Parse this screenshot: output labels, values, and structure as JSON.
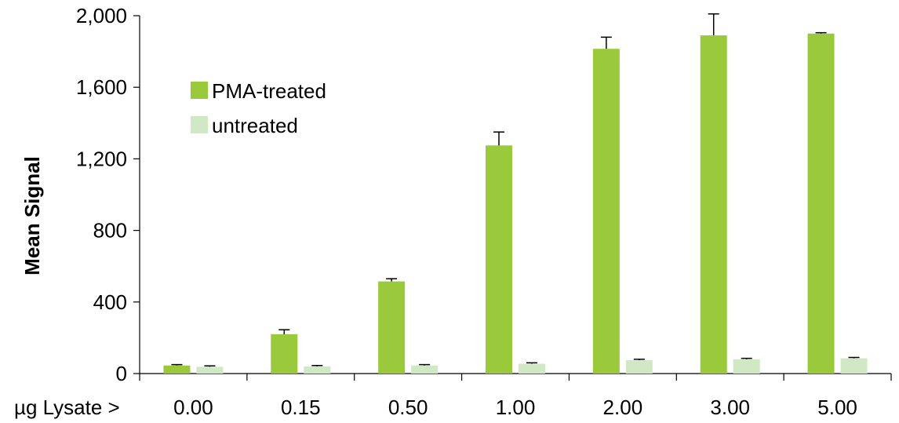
{
  "chart_data": {
    "type": "bar",
    "xlabel": "µg Lysate >",
    "ylabel": "Mean Signal",
    "categories": [
      "0.00",
      "0.15",
      "0.50",
      "1.00",
      "2.00",
      "3.00",
      "5.00"
    ],
    "series": [
      {
        "name": "PMA-treated",
        "color": "#9ACA3C",
        "values": [
          45,
          220,
          515,
          1275,
          1815,
          1890,
          1900
        ],
        "errors": [
          5,
          25,
          15,
          75,
          65,
          120,
          5
        ]
      },
      {
        "name": "untreated",
        "color": "#D1E8C4",
        "values": [
          38,
          40,
          45,
          55,
          75,
          80,
          85
        ],
        "errors": [
          5,
          5,
          5,
          5,
          5,
          5,
          5
        ]
      }
    ],
    "ylim": [
      0,
      2000
    ],
    "yticks": [
      "0",
      "400",
      "800",
      "1,200",
      "1,600",
      "2,000"
    ],
    "ytick_values": [
      0,
      400,
      800,
      1200,
      1600,
      2000
    ],
    "grid": false,
    "legend_position": "top-left",
    "error_bars": true
  }
}
